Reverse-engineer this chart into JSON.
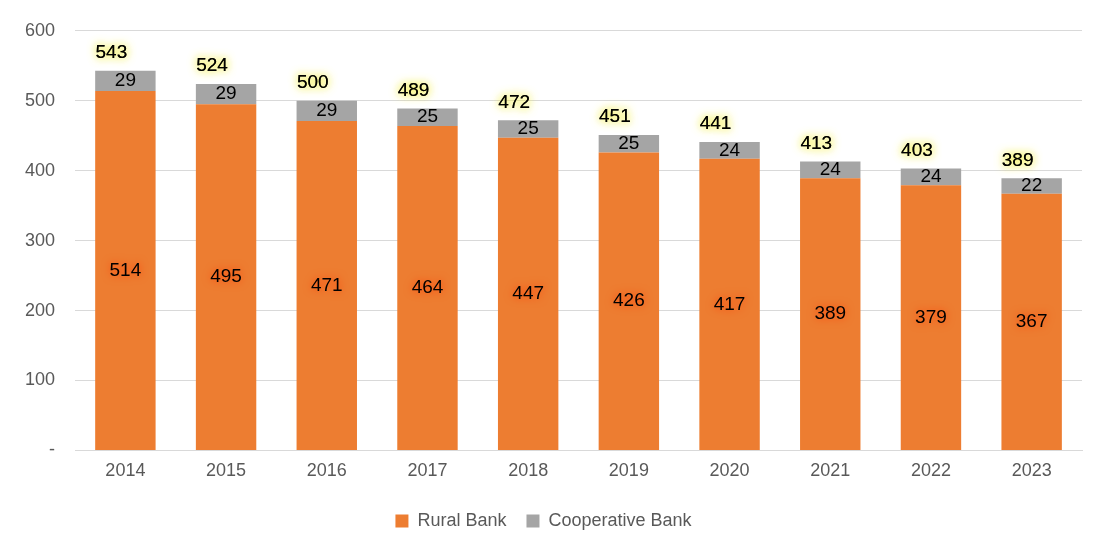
{
  "chart_data": {
    "type": "bar",
    "stacked": true,
    "categories": [
      "2014",
      "2015",
      "2016",
      "2017",
      "2018",
      "2019",
      "2020",
      "2021",
      "2022",
      "2023"
    ],
    "series": [
      {
        "name": "Rural Bank",
        "color": "#ed7d31",
        "values": [
          514,
          495,
          471,
          464,
          447,
          426,
          417,
          389,
          379,
          367
        ]
      },
      {
        "name": "Cooperative Bank",
        "color": "#a5a5a5",
        "values": [
          29,
          29,
          29,
          25,
          25,
          25,
          24,
          24,
          24,
          22
        ]
      }
    ],
    "totals": [
      "543",
      "524",
      "500",
      "489",
      "472",
      "451",
      "441",
      "413",
      "403",
      "389"
    ],
    "data_labels": true,
    "ylim": [
      0,
      600
    ],
    "yticks": [
      {
        "value": 0,
        "label": "-"
      },
      100,
      200,
      300,
      400,
      500,
      600
    ],
    "grid": "y",
    "legend": "bottom"
  }
}
